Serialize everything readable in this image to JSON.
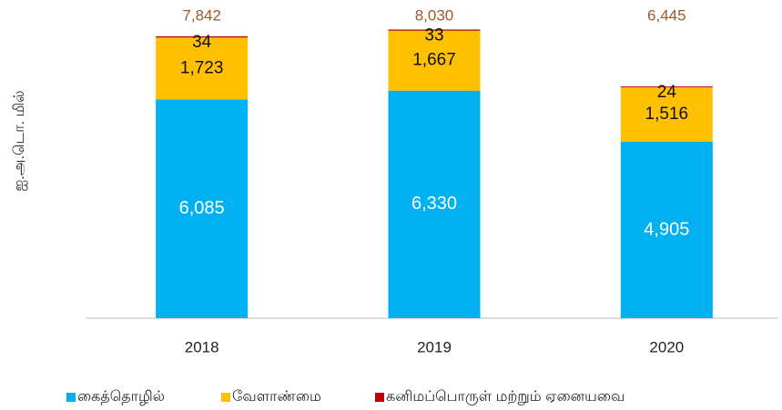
{
  "chart_data": {
    "type": "stacked_bar",
    "y_label": "ஐ.அ.டொ. மில்",
    "categories": [
      "2018",
      "2019",
      "2020"
    ],
    "series": [
      {
        "name": "கைத்தொழில்",
        "color": "#00b0f0",
        "values": [
          6085,
          6330,
          4905
        ],
        "value_labels": [
          "6,085",
          "6,330",
          "4,905"
        ]
      },
      {
        "name": "வேளாண்மை",
        "color": "#ffc000",
        "values": [
          1723,
          1667,
          1516
        ],
        "value_labels": [
          "1,723",
          "1,667",
          "1,516"
        ]
      },
      {
        "name": "கனிமப்பொருள் மற்றும் ஏனையவை",
        "color": "#c00000",
        "values": [
          34,
          33,
          24
        ]
      }
    ],
    "totals": {
      "values": [
        7842,
        8030,
        6445
      ],
      "value_labels": [
        "7,842",
        "8,030",
        "6,445"
      ]
    },
    "ylim": [
      0,
      8800
    ]
  }
}
